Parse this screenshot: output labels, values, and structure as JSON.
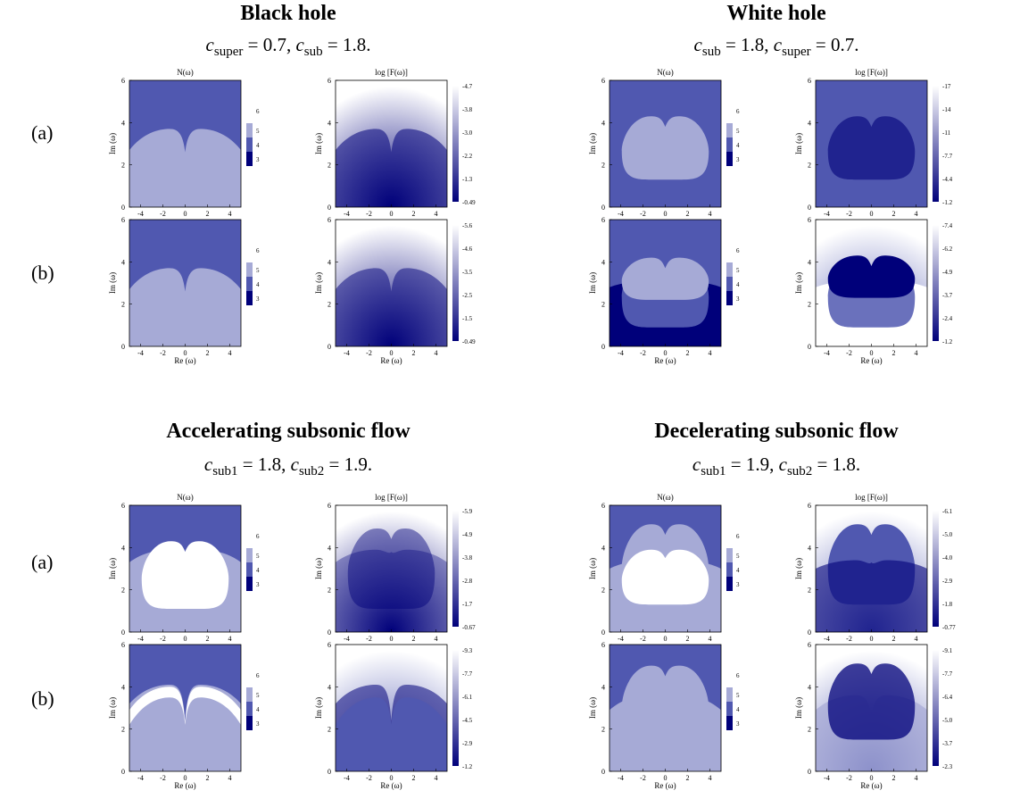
{
  "colors": {
    "dark": "#00007a",
    "mid": "#5058b0",
    "light": "#a6aad6",
    "white": "#ffffff"
  },
  "groups": [
    {
      "title": "Black hole",
      "sub_lhs1": "c",
      "sub_s1": "super",
      "sub_v1": "= 0.7,",
      "sub_lhs2": "c",
      "sub_s2": "sub",
      "sub_v2": "= 1.8."
    },
    {
      "title": "White hole",
      "sub_lhs1": "c",
      "sub_s1": "sub",
      "sub_v1": "= 1.8,",
      "sub_lhs2": "c",
      "sub_s2": "super",
      "sub_v2": "= 0.7."
    },
    {
      "title": "Accelerating subsonic flow",
      "sub_lhs1": "c",
      "sub_s1": "sub1",
      "sub_v1": "= 1.8,",
      "sub_lhs2": "c",
      "sub_s2": "sub2",
      "sub_v2": "= 1.9."
    },
    {
      "title": "Decelerating subsonic flow",
      "sub_lhs1": "c",
      "sub_s1": "sub1",
      "sub_v1": "= 1.9,",
      "sub_lhs2": "c",
      "sub_s2": "sub2",
      "sub_v2": "= 1.8."
    }
  ],
  "row_labels": [
    "(a)",
    "(b)",
    "(a)",
    "(b)"
  ],
  "chart_data": {
    "type": "heatmap",
    "panel_titles": [
      "N(ω)",
      "log [F(ω)]"
    ],
    "xlabel": "Re (ω)",
    "ylabel": "Im (ω)",
    "xlim": [
      -5,
      5
    ],
    "ylim": [
      0,
      6
    ],
    "xticks": [
      "-4",
      "-2",
      "0",
      "2",
      "4"
    ],
    "yticks": [
      "0",
      "2",
      "4",
      "6"
    ],
    "n_colorbar_ticks": [
      "3",
      "4",
      "5",
      "6"
    ],
    "panels": [
      {
        "group": "Black hole",
        "row": "(a)",
        "n_regions": [
          "outer=4",
          "lower=5"
        ],
        "logF_colorbar": [
          "-4.7",
          "-3.8",
          "-3.0",
          "-2.2",
          "-1.3",
          "-0.49"
        ]
      },
      {
        "group": "Black hole",
        "row": "(b)",
        "n_regions": [
          "outer=4",
          "lower=5"
        ],
        "logF_colorbar": [
          "-5.6",
          "-4.6",
          "-3.5",
          "-2.5",
          "-1.5",
          "-0.49"
        ]
      },
      {
        "group": "White hole",
        "row": "(a)",
        "n_regions": [
          "outer=4",
          "heart=5"
        ],
        "logF_colorbar": [
          "-17",
          "-14",
          "-11",
          "-7.7",
          "-4.4",
          "-1.2"
        ]
      },
      {
        "group": "White hole",
        "row": "(b)",
        "n_regions": [
          "outer=4",
          "heart=5",
          "bottom=3"
        ],
        "logF_colorbar": [
          "-7.4",
          "-6.2",
          "-4.9",
          "-3.7",
          "-2.4",
          "-1.2"
        ]
      },
      {
        "group": "Accelerating subsonic flow",
        "row": "(a)",
        "n_regions": [
          "outer=4",
          "lower=5",
          "heart=6"
        ],
        "logF_colorbar": [
          "-5.9",
          "-4.9",
          "-3.8",
          "-2.8",
          "-1.7",
          "-0.67"
        ]
      },
      {
        "group": "Accelerating subsonic flow",
        "row": "(b)",
        "n_regions": [
          "outer=4",
          "lower=5",
          "crescent=6"
        ],
        "logF_colorbar": [
          "-9.3",
          "-7.7",
          "-6.1",
          "-4.5",
          "-2.9",
          "-1.2"
        ]
      },
      {
        "group": "Decelerating subsonic flow",
        "row": "(a)",
        "n_regions": [
          "outer=4",
          "heart=5",
          "overlap=6"
        ],
        "logF_colorbar": [
          "-6.1",
          "-5.0",
          "-4.0",
          "-2.9",
          "-1.8",
          "-0.77"
        ]
      },
      {
        "group": "Decelerating subsonic flow",
        "row": "(b)",
        "n_regions": [
          "outer=4",
          "lower=5",
          "heart=5"
        ],
        "logF_colorbar": [
          "-9.1",
          "-7.7",
          "-6.4",
          "-5.0",
          "-3.7",
          "-2.3"
        ]
      }
    ]
  }
}
